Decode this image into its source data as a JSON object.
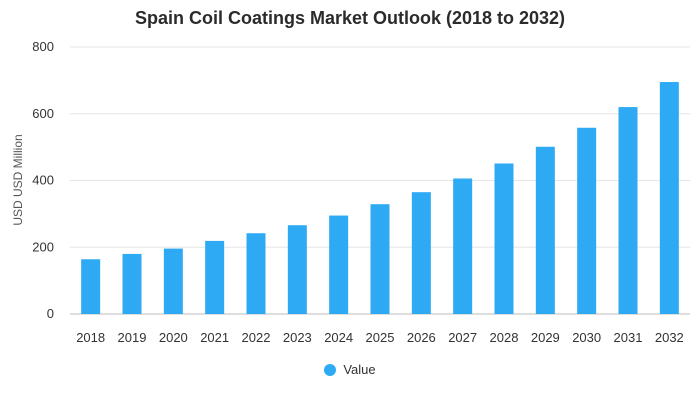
{
  "chart_data": {
    "type": "bar",
    "title": "Spain Coil Coatings Market Outlook (2018 to 2032)",
    "xlabel": "",
    "ylabel": "USD USD Million",
    "ylim": [
      0,
      800
    ],
    "yticks": [
      "0",
      "200",
      "400",
      "600",
      "800"
    ],
    "categories": [
      "2018",
      "2019",
      "2020",
      "2021",
      "2022",
      "2023",
      "2024",
      "2025",
      "2026",
      "2027",
      "2028",
      "2029",
      "2030",
      "2031",
      "2032"
    ],
    "series": [
      {
        "name": "Value",
        "color": "#2eaaf5",
        "values": [
          164,
          180,
          196,
          219,
          242,
          266,
          295,
          329,
          365,
          406,
          451,
          501,
          558,
          620,
          695
        ]
      }
    ],
    "grid": true,
    "legend_position": "bottom"
  }
}
